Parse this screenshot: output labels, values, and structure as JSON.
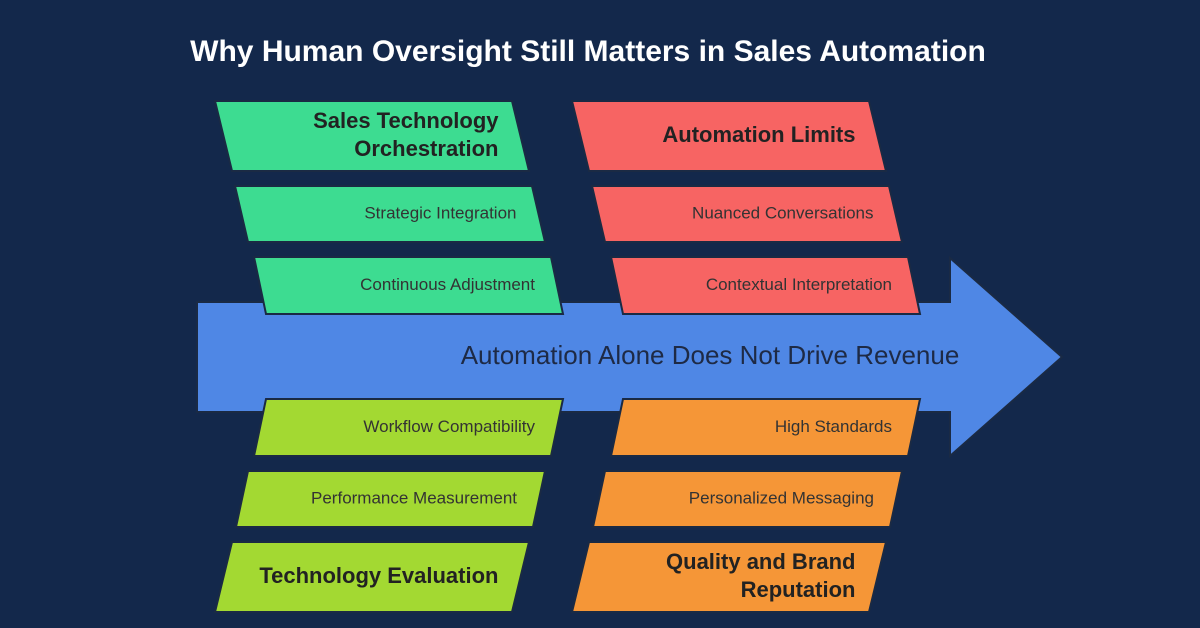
{
  "title": "Why Human Oversight Still Matters in Sales Automation",
  "spine": "Automation Alone Does Not Drive Revenue",
  "groups": [
    {
      "heading": [
        "Sales Technology",
        "Orchestration"
      ],
      "items": [
        "Strategic Integration",
        "Continuous Adjustment"
      ]
    },
    {
      "heading": [
        "Automation Limits"
      ],
      "items": [
        "Nuanced Conversations",
        "Contextual Interpretation"
      ]
    },
    {
      "heading": [
        "Technology Evaluation"
      ],
      "items": [
        "Workflow Compatibility",
        "Performance Measurement"
      ]
    },
    {
      "heading": [
        "Quality and Brand",
        "Reputation"
      ],
      "items": [
        "High Standards",
        "Personalized Messaging"
      ]
    }
  ]
}
